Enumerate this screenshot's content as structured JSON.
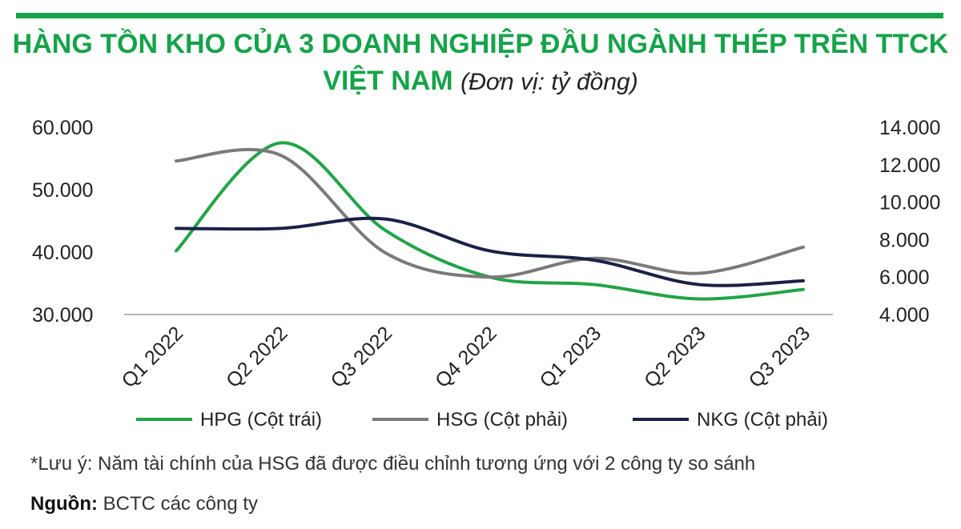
{
  "header": {
    "title_line1": "HÀNG TỒN KHO CỦA 3 DOANH NGHIỆP ĐẦU NGÀNH THÉP TRÊN TTCK",
    "title_line2": "VIỆT NAM",
    "unit": "(Đơn vị: tỷ đồng)"
  },
  "chart_data": {
    "type": "line",
    "categories": [
      "Q1 2022",
      "Q2 2022",
      "Q3 2022",
      "Q4 2022",
      "Q1 2023",
      "Q2 2023",
      "Q3 2023"
    ],
    "y_left": {
      "range": [
        30000,
        60000
      ],
      "ticks": [
        "60.000",
        "50.000",
        "40.000",
        "30.000"
      ],
      "tick_values": [
        60000,
        50000,
        40000,
        30000
      ]
    },
    "y_right": {
      "range": [
        4000,
        14000
      ],
      "ticks": [
        "14.000",
        "12.000",
        "10.000",
        "8.000",
        "6.000",
        "4.000"
      ],
      "tick_values": [
        14000,
        12000,
        10000,
        8000,
        6000,
        4000
      ]
    },
    "series": [
      {
        "name": "HPG (Cột trái)",
        "axis": "left",
        "color": "#22a447",
        "values": [
          40200,
          57500,
          43500,
          36000,
          34800,
          32500,
          34000
        ]
      },
      {
        "name": "HSG (Cột phải)",
        "axis": "right",
        "color": "#7a7a7a",
        "values": [
          12200,
          12500,
          7300,
          6000,
          7000,
          6200,
          7600
        ]
      },
      {
        "name": "NKG (Cột phải)",
        "axis": "right",
        "color": "#1c2047",
        "values": [
          8600,
          8600,
          9100,
          7400,
          6900,
          5600,
          5800
        ]
      }
    ],
    "grid": false,
    "legend_position": "bottom"
  },
  "footer": {
    "note": "*Lưu ý: Năm tài chính của HSG đã được điều chỉnh tương ứng với 2 công ty so sánh",
    "source_label": "Nguồn:",
    "source_text": " BCTC các công ty"
  },
  "colors": {
    "accent": "#16a34a"
  }
}
